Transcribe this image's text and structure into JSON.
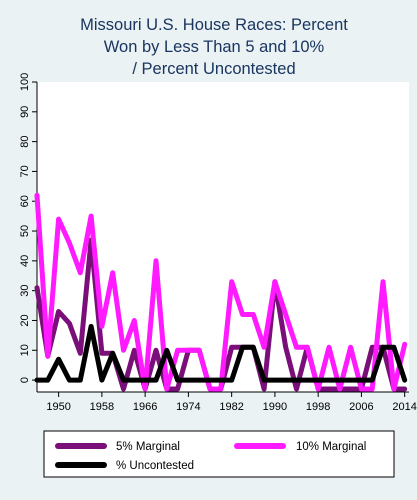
{
  "chart_data": {
    "type": "line",
    "title_lines": [
      "Missouri U.S. House Races: Percent",
      "Won by Less Than 5 and 10%",
      "/ Percent Uncontested"
    ],
    "xlabel": "",
    "ylabel": "",
    "xlim": [
      1946,
      2014.8
    ],
    "ylim": [
      -4,
      100
    ],
    "x_ticks": [
      1950,
      1958,
      1966,
      1974,
      1982,
      1990,
      1998,
      2006,
      2014
    ],
    "y_ticks": [
      0,
      10,
      20,
      30,
      40,
      50,
      60,
      70,
      80,
      90,
      100
    ],
    "grid": false,
    "legend_position": "bottom",
    "x": [
      1946,
      1948,
      1950,
      1952,
      1954,
      1956,
      1958,
      1960,
      1962,
      1964,
      1966,
      1968,
      1970,
      1972,
      1974,
      1976,
      1978,
      1980,
      1982,
      1984,
      1986,
      1988,
      1990,
      1992,
      1994,
      1996,
      1998,
      2000,
      2002,
      2004,
      2006,
      2008,
      2010,
      2012,
      2014
    ],
    "series": [
      {
        "name": "5% Marginal",
        "color": "#7a0f7a",
        "values": [
          31,
          8,
          23,
          19,
          9,
          47,
          9,
          9,
          -3,
          10,
          -3,
          10,
          -3,
          -3,
          10,
          10,
          -3,
          -3,
          11,
          11,
          11,
          -3,
          33,
          11,
          -3,
          11,
          -3,
          -3,
          -3,
          -3,
          -3,
          11,
          11,
          -3,
          -3
        ]
      },
      {
        "name": "10% Marginal",
        "color": "#ff1aff",
        "values": [
          62,
          8,
          54,
          46,
          36,
          55,
          18,
          36,
          10,
          20,
          -3,
          40,
          -3,
          10,
          10,
          10,
          -3,
          -3,
          33,
          22,
          22,
          11,
          33,
          22,
          11,
          11,
          -3,
          11,
          -3,
          11,
          -3,
          -3,
          33,
          -3,
          12
        ]
      },
      {
        "name": "% Uncontested",
        "color": "#000000",
        "values": [
          0,
          0,
          7,
          0,
          0,
          18,
          0,
          9,
          0,
          0,
          0,
          0,
          10,
          0,
          0,
          0,
          0,
          0,
          0,
          11,
          11,
          0,
          0,
          0,
          0,
          0,
          0,
          0,
          0,
          0,
          0,
          0,
          11,
          11,
          0
        ]
      }
    ]
  }
}
